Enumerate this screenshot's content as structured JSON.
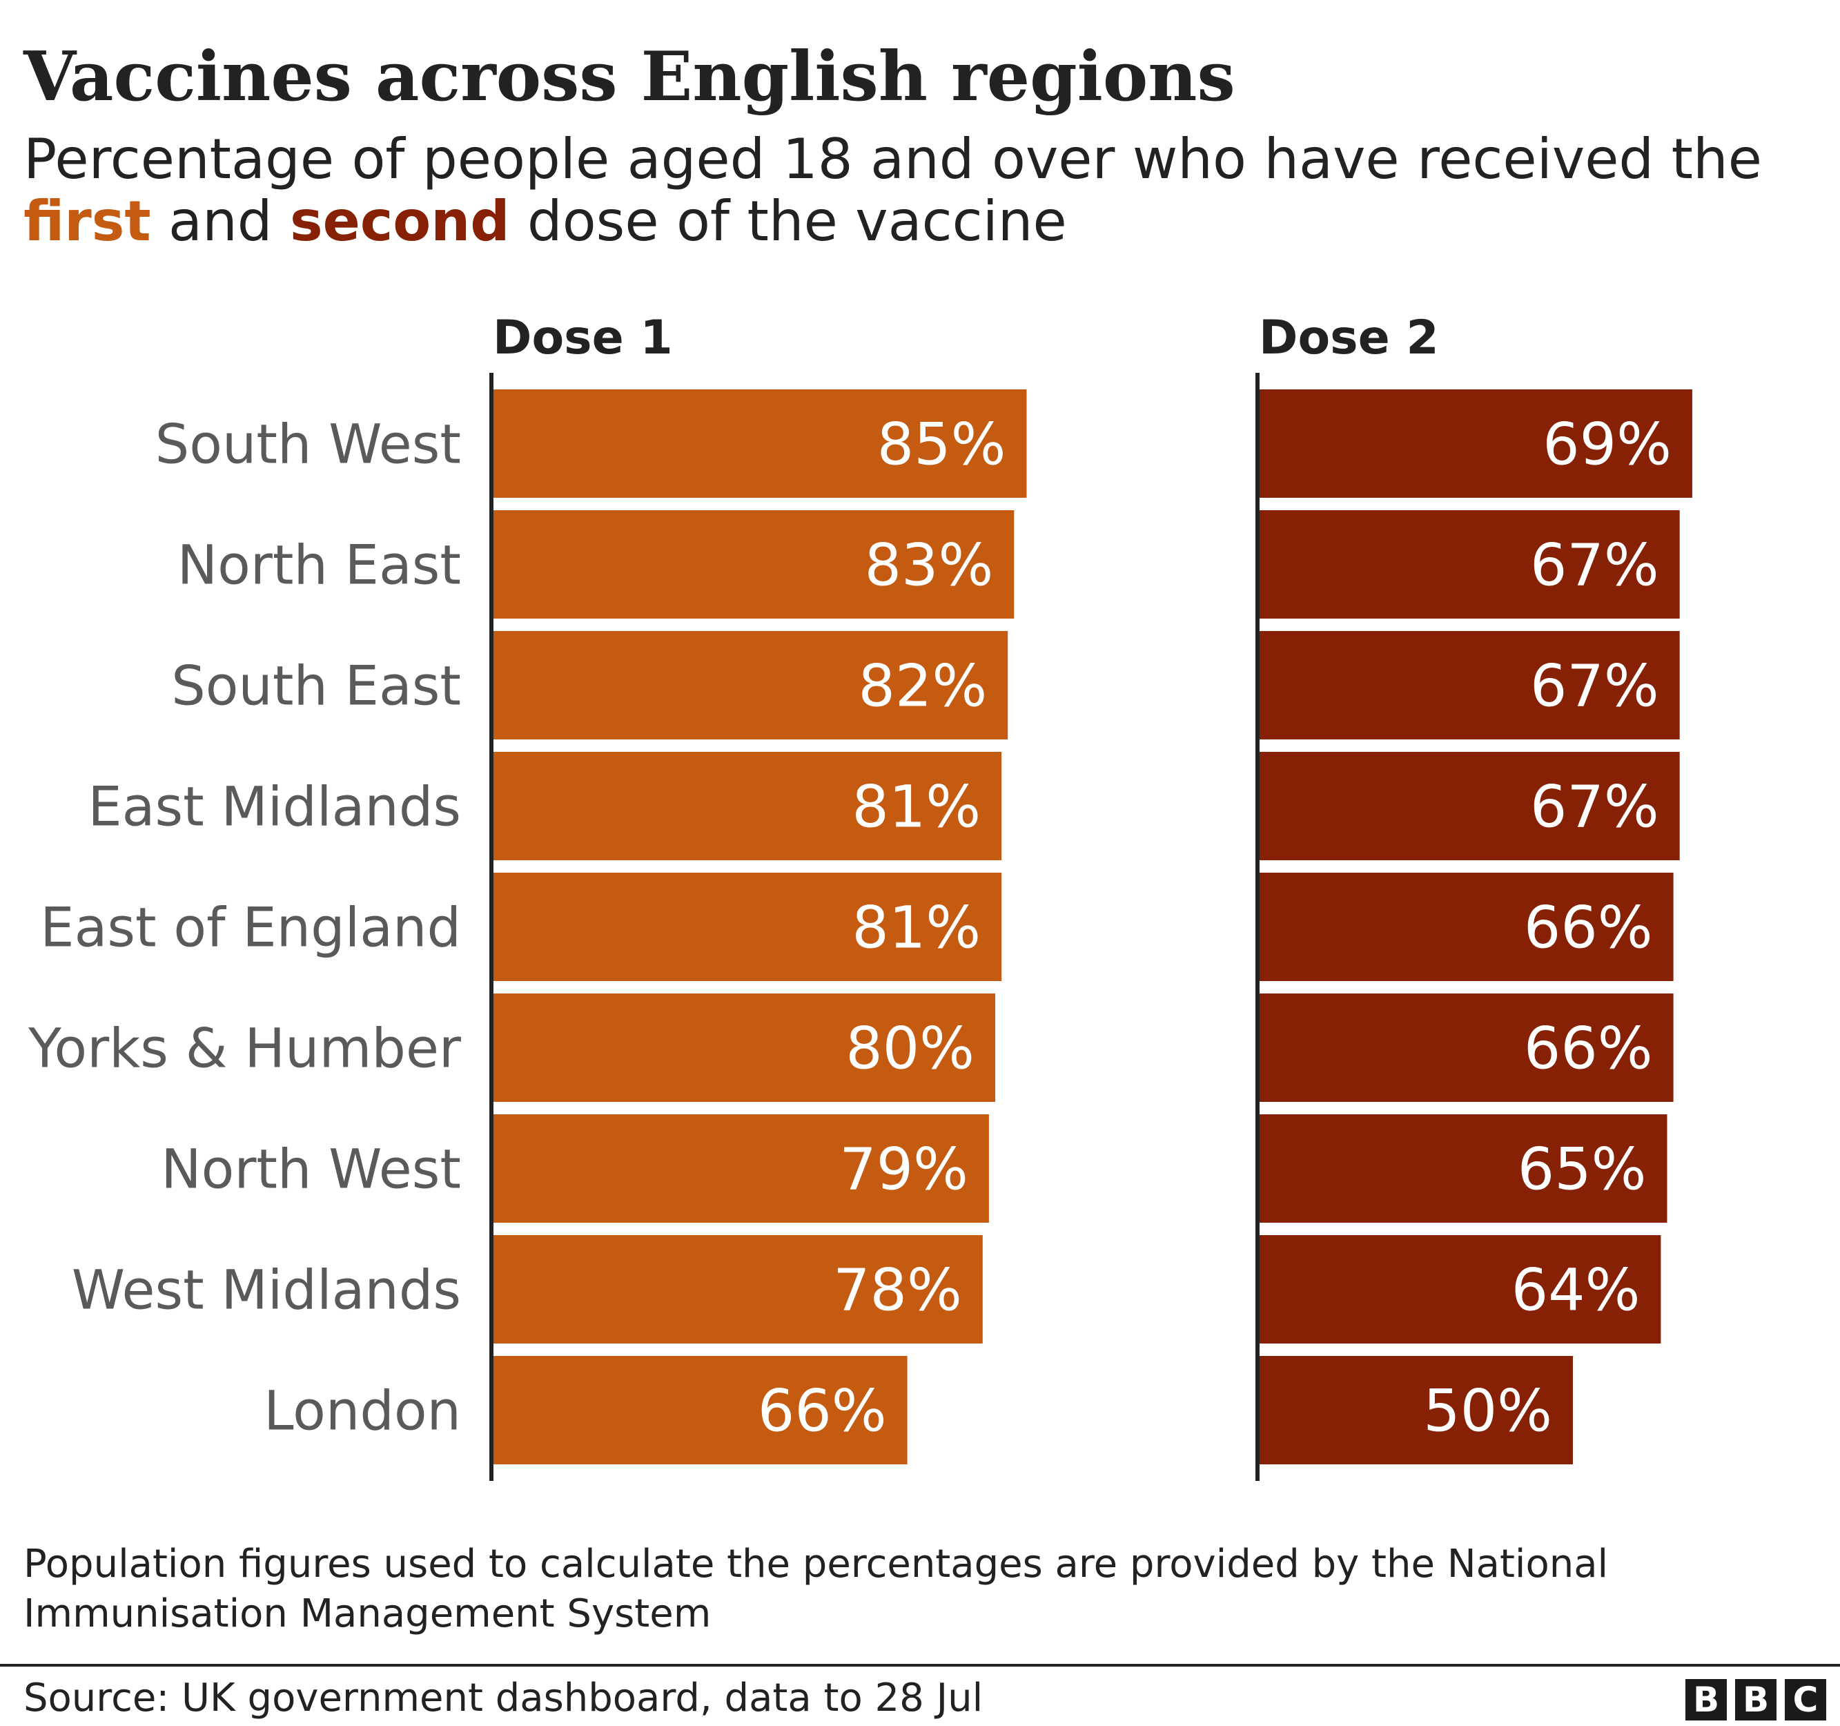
{
  "header": {
    "title": "Vaccines across English regions",
    "subtitle_before": "Percentage of people aged 18 and over who have received the",
    "subtitle_first": "first",
    "subtitle_and": "and",
    "subtitle_second": "second",
    "subtitle_after": "dose of the vaccine"
  },
  "colors": {
    "dose1": "#c55a11",
    "dose2": "#862105",
    "axis": "#222222",
    "category_text": "#5a5a5a",
    "label_text": "#ffffff"
  },
  "chart_data": {
    "type": "bar",
    "orientation": "horizontal",
    "title": "Vaccines across English regions",
    "subtitle": "Percentage of people aged 18 and over who have received the first and second dose of the vaccine",
    "categories": [
      "South West",
      "North East",
      "South East",
      "East Midlands",
      "East of England",
      "Yorks & Humber",
      "North West",
      "West Midlands",
      "London"
    ],
    "series": [
      {
        "name": "Dose 1",
        "values": [
          85,
          83,
          82,
          81,
          81,
          80,
          79,
          78,
          66
        ],
        "labels": [
          "85%",
          "83%",
          "82%",
          "81%",
          "81%",
          "80%",
          "79%",
          "78%",
          "66%"
        ]
      },
      {
        "name": "Dose 2",
        "values": [
          69,
          67,
          67,
          67,
          66,
          66,
          65,
          64,
          50
        ],
        "labels": [
          "69%",
          "67%",
          "67%",
          "67%",
          "66%",
          "66%",
          "65%",
          "64%",
          "50%"
        ]
      }
    ],
    "unit": "%",
    "grid": false,
    "legend": "none"
  },
  "footer": {
    "note": "Population figures used to calculate the percentages are provided by the National Immunisation Management System",
    "source": "Source: UK government dashboard, data to 28 Jul",
    "logo": [
      "B",
      "B",
      "C"
    ]
  }
}
